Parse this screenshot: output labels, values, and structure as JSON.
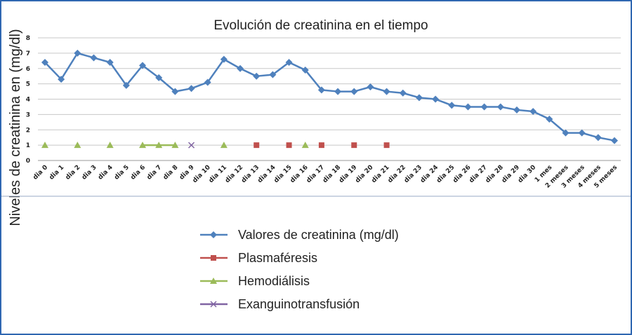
{
  "chart_data": {
    "type": "line",
    "title": "Evolución de creatinina en el tiempo",
    "ylabel": "Niveles de creatinina en (mg/dl)",
    "xlabel": "",
    "ylim": [
      0,
      8
    ],
    "yticks": [
      0,
      1,
      2,
      3,
      4,
      5,
      6,
      7,
      8
    ],
    "grid": true,
    "legend_position": "bottom",
    "categories": [
      "dia 0",
      "dia 1",
      "dia 2",
      "dia 3",
      "dia 4",
      "dia 5",
      "dia 6",
      "dia 7",
      "dia 8",
      "dia 9",
      "dia 10",
      "dia 11",
      "dia 12",
      "dia 13",
      "dia 14",
      "dia 15",
      "dia 16",
      "dia 17",
      "dia 18",
      "dia 19",
      "dia 20",
      "dia 21",
      "dia 22",
      "dia 23",
      "dia 24",
      "dia 25",
      "dia 26",
      "dia 27",
      "dia 28",
      "dia 29",
      "dia 30",
      "1 mes",
      "2 meses",
      "3 meses",
      "4 meses",
      "5 meses"
    ],
    "series": [
      {
        "name": "Valores de creatinina (mg/dl)",
        "color": "#4f81bd",
        "marker": "diamond",
        "line": true,
        "values": [
          6.4,
          5.3,
          7.0,
          6.7,
          6.4,
          4.9,
          6.2,
          5.4,
          4.5,
          4.7,
          5.1,
          6.6,
          6.0,
          5.5,
          5.6,
          6.4,
          5.9,
          4.6,
          4.5,
          4.5,
          4.8,
          4.5,
          4.4,
          4.1,
          4.0,
          3.6,
          3.5,
          3.5,
          3.5,
          3.3,
          3.2,
          2.7,
          1.8,
          1.8,
          1.5,
          1.3
        ]
      },
      {
        "name": "Plasmaféresis",
        "color": "#c0504d",
        "marker": "square",
        "line": false,
        "values": [
          null,
          null,
          null,
          null,
          null,
          null,
          null,
          null,
          null,
          null,
          null,
          null,
          null,
          1,
          null,
          1,
          null,
          1,
          null,
          1,
          null,
          1,
          null,
          null,
          null,
          null,
          null,
          null,
          null,
          null,
          null,
          null,
          null,
          null,
          null,
          null
        ]
      },
      {
        "name": "Hemodiálisis",
        "color": "#9bbb59",
        "marker": "triangle",
        "line": true,
        "values": [
          1,
          null,
          1,
          null,
          1,
          null,
          1,
          1,
          1,
          null,
          null,
          1,
          null,
          null,
          null,
          null,
          1,
          null,
          null,
          null,
          null,
          null,
          null,
          null,
          null,
          null,
          null,
          null,
          null,
          null,
          null,
          null,
          null,
          null,
          null,
          null
        ]
      },
      {
        "name": "Exanguinotransfusión",
        "color": "#8064a2",
        "marker": "x",
        "line": false,
        "values": [
          null,
          null,
          null,
          null,
          null,
          null,
          null,
          null,
          null,
          1,
          null,
          null,
          null,
          null,
          null,
          null,
          null,
          null,
          null,
          null,
          null,
          null,
          null,
          null,
          null,
          null,
          null,
          null,
          null,
          null,
          null,
          null,
          null,
          null,
          null,
          null
        ]
      }
    ]
  }
}
